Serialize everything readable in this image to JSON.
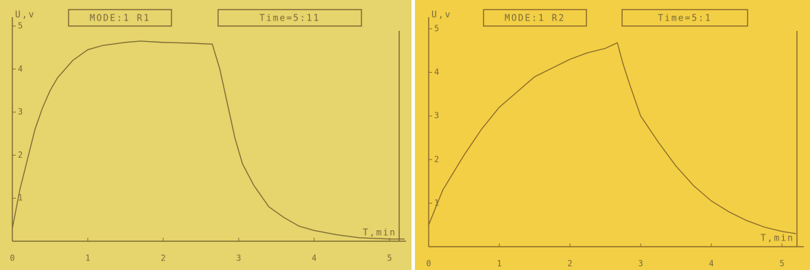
{
  "chart_data": [
    {
      "type": "line",
      "mode": "MODE:1 R1",
      "time": "Time=5:11",
      "y_label": "U,v",
      "x_label": "T,min",
      "xlim": [
        0,
        5.3
      ],
      "ylim": [
        0,
        5
      ],
      "xticks": [
        0,
        1,
        2,
        3,
        4,
        5
      ],
      "yticks": [
        1,
        2,
        3,
        4,
        5
      ],
      "background": "#e6d46c",
      "color": "#7a6a34",
      "series": [
        {
          "x": [
            0,
            0.1,
            0.2,
            0.3,
            0.4,
            0.5,
            0.6,
            0.8,
            1.0,
            1.2,
            1.5,
            1.7,
            2.0,
            2.4,
            2.65,
            2.75,
            2.85,
            2.95,
            3.05,
            3.2,
            3.4,
            3.6,
            3.8,
            4.0,
            4.3,
            4.6,
            5.0,
            5.2
          ],
          "values": [
            0.3,
            1.2,
            1.9,
            2.6,
            3.1,
            3.5,
            3.8,
            4.2,
            4.45,
            4.55,
            4.62,
            4.65,
            4.62,
            4.6,
            4.58,
            4.0,
            3.2,
            2.4,
            1.8,
            1.3,
            0.8,
            0.55,
            0.35,
            0.25,
            0.15,
            0.08,
            0.05,
            0.05
          ]
        }
      ]
    },
    {
      "type": "line",
      "mode": "MODE:1 R2",
      "time": "Time=5:1",
      "y_label": "U,v",
      "x_label": "T,min",
      "xlim": [
        0,
        5.3
      ],
      "ylim": [
        0,
        5
      ],
      "xticks": [
        0,
        1,
        2,
        3,
        4,
        5
      ],
      "yticks": [
        1,
        2,
        3,
        4,
        5
      ],
      "background": "#f3cf45",
      "color": "#8a6a2a",
      "series": [
        {
          "x": [
            0,
            0.2,
            0.35,
            0.5,
            0.75,
            1.0,
            1.25,
            1.5,
            1.75,
            2.0,
            2.25,
            2.5,
            2.67,
            2.75,
            2.85,
            3.0,
            3.25,
            3.5,
            3.75,
            4.0,
            4.25,
            4.5,
            4.75,
            5.0,
            5.2
          ],
          "values": [
            0.5,
            1.3,
            1.7,
            2.1,
            2.7,
            3.2,
            3.55,
            3.9,
            4.1,
            4.3,
            4.45,
            4.55,
            4.68,
            4.2,
            3.7,
            3.0,
            2.4,
            1.85,
            1.4,
            1.05,
            0.8,
            0.6,
            0.45,
            0.35,
            0.3
          ]
        }
      ]
    }
  ]
}
